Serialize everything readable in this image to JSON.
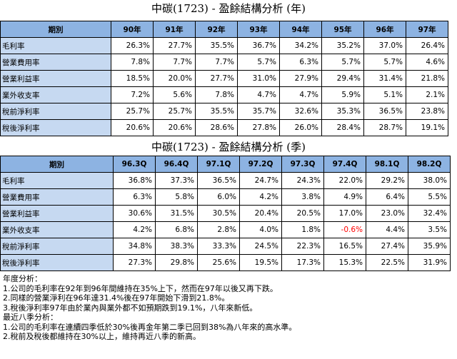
{
  "annual": {
    "title": "中碳(1723) - 盈餘結構分析 (年)",
    "header_label": "期別",
    "periods": [
      "90年",
      "91年",
      "92年",
      "93年",
      "94年",
      "95年",
      "96年",
      "97年"
    ],
    "rows": [
      {
        "label": "毛利率",
        "values": [
          "26.3%",
          "27.7%",
          "35.5%",
          "36.7%",
          "34.2%",
          "35.2%",
          "37.0%",
          "26.4%"
        ]
      },
      {
        "label": "營業費用率",
        "values": [
          "7.8%",
          "7.7%",
          "7.7%",
          "5.7%",
          "6.3%",
          "5.7%",
          "5.7%",
          "4.6%"
        ]
      },
      {
        "label": "營業利益率",
        "values": [
          "18.5%",
          "20.0%",
          "27.7%",
          "31.0%",
          "27.9%",
          "29.4%",
          "31.4%",
          "21.8%"
        ]
      },
      {
        "label": "業外收支率",
        "values": [
          "7.2%",
          "5.6%",
          "7.8%",
          "4.7%",
          "4.7%",
          "5.9%",
          "5.1%",
          "2.1%"
        ]
      },
      {
        "label": "稅前淨利率",
        "values": [
          "25.7%",
          "25.7%",
          "35.5%",
          "35.7%",
          "32.6%",
          "35.3%",
          "36.5%",
          "23.8%"
        ]
      },
      {
        "label": "稅後淨利率",
        "values": [
          "20.6%",
          "20.6%",
          "28.6%",
          "27.8%",
          "26.0%",
          "28.4%",
          "28.7%",
          "19.1%"
        ]
      }
    ]
  },
  "quarterly": {
    "title": "中碳(1723) - 盈餘結構分析 (季)",
    "header_label": "期別",
    "periods": [
      "96.3Q",
      "96.4Q",
      "97.1Q",
      "97.2Q",
      "97.3Q",
      "97.4Q",
      "98.1Q",
      "98.2Q"
    ],
    "rows": [
      {
        "label": "毛利率",
        "values": [
          "36.8%",
          "37.3%",
          "36.5%",
          "24.7%",
          "24.3%",
          "22.0%",
          "29.2%",
          "38.0%"
        ]
      },
      {
        "label": "營業費用率",
        "values": [
          "6.3%",
          "5.8%",
          "6.0%",
          "4.2%",
          "3.8%",
          "4.9%",
          "6.4%",
          "5.5%"
        ]
      },
      {
        "label": "營業利益率",
        "values": [
          "30.6%",
          "31.5%",
          "30.5%",
          "20.4%",
          "20.5%",
          "17.0%",
          "23.0%",
          "32.4%"
        ]
      },
      {
        "label": "業外收支率",
        "values": [
          "4.2%",
          "6.8%",
          "2.8%",
          "4.0%",
          "1.8%",
          "-0.6%",
          "4.4%",
          "3.5%"
        ]
      },
      {
        "label": "稅前淨利率",
        "values": [
          "34.8%",
          "38.3%",
          "33.3%",
          "24.5%",
          "22.3%",
          "16.5%",
          "27.4%",
          "35.9%"
        ]
      },
      {
        "label": "稅後淨利率",
        "values": [
          "27.3%",
          "29.8%",
          "25.6%",
          "19.5%",
          "17.3%",
          "15.3%",
          "22.5%",
          "31.9%"
        ]
      }
    ],
    "negative_color": "#ff0000"
  },
  "notes": [
    "年度分析：",
    "1.公司的毛利率在92年到96年間維持在35%上下，然而在97年以後又再下跌。",
    "2.同樣的營業淨利在96年達31.4%後在97年開始下滑到21.8%。",
    "3.稅後淨利率97年由於業內與業外都不如預期跌到19.1%，八年來新低。",
    "最近八季分析：",
    "1.公司的毛利率在連續四季低於30%後再金年第二季已回到38%為八年來的高水準。",
    "2.稅前及稅後都維持在30%以上，維持再近八季的新高。"
  ],
  "colors": {
    "header_bg": "#8db3e2",
    "label_bg": "#c6d9f1"
  }
}
